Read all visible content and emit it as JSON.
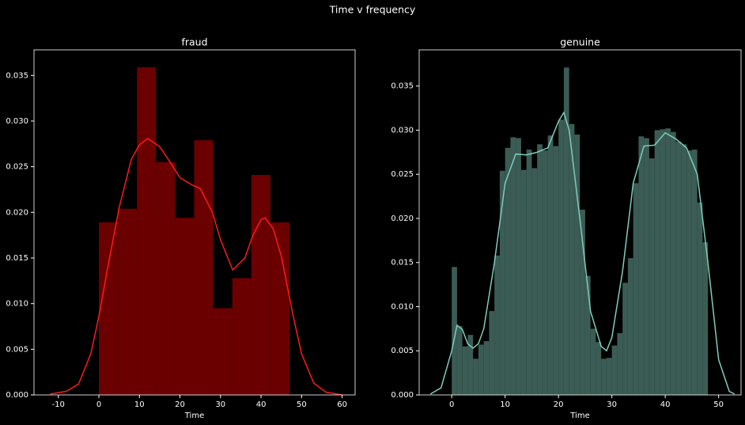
{
  "title": "Time v frequency",
  "chart_data": [
    {
      "type": "histogram",
      "title": "fraud",
      "x_label": "Time",
      "bins": [
        0,
        4.7,
        9.4,
        14.1,
        18.8,
        23.5,
        28.2,
        32.9,
        37.6,
        42.3,
        47
      ],
      "values": [
        0.0189,
        0.0204,
        0.0359,
        0.0255,
        0.0194,
        0.0279,
        0.0095,
        0.0128,
        0.0241,
        0.0189
      ],
      "color": "#6b0000",
      "kde_x": [
        -12,
        -8,
        -5,
        -2,
        0,
        2,
        5,
        8,
        10,
        12,
        15,
        18,
        20,
        23,
        25,
        28,
        30,
        33,
        36,
        38,
        40,
        41,
        43,
        45,
        48,
        50,
        53,
        56,
        60
      ],
      "kde_values": [
        0.0001,
        0.0004,
        0.0012,
        0.0045,
        0.0086,
        0.0135,
        0.0205,
        0.0258,
        0.0274,
        0.0281,
        0.0272,
        0.0252,
        0.0238,
        0.023,
        0.0226,
        0.02,
        0.017,
        0.0137,
        0.015,
        0.0175,
        0.0192,
        0.0194,
        0.0182,
        0.0152,
        0.0085,
        0.0045,
        0.0013,
        0.0003,
        0.0
      ],
      "kde_color": "#ff1a1a",
      "xlim": [
        -16,
        63.2
      ],
      "xticks": [
        -10,
        0,
        10,
        20,
        30,
        40,
        50,
        60
      ],
      "ylim": [
        0,
        0.0378
      ],
      "yticks": [
        {
          "value": 0,
          "label": "0.000"
        },
        {
          "value": 0.005,
          "label": "0.005"
        },
        {
          "value": 0.01,
          "label": "0.010"
        },
        {
          "value": 0.015,
          "label": "0.015"
        },
        {
          "value": 0.02,
          "label": "0.020"
        },
        {
          "value": 0.025,
          "label": "0.025"
        },
        {
          "value": 0.03,
          "label": "0.030"
        },
        {
          "value": 0.035,
          "label": "0.035"
        }
      ]
    },
    {
      "type": "histogram",
      "title": "genuine",
      "x_label": "Time",
      "bins": [
        0,
        1,
        2,
        3,
        4,
        5,
        6,
        7,
        8,
        9,
        10,
        11,
        12,
        13,
        14,
        15,
        16,
        17,
        18,
        19,
        20,
        21,
        22,
        23,
        24,
        25,
        26,
        27,
        28,
        29,
        30,
        31,
        32,
        33,
        34,
        35,
        36,
        37,
        38,
        39,
        40,
        41,
        42,
        43,
        44,
        45,
        46,
        47,
        48
      ],
      "values": [
        0.0145,
        0.0078,
        0.0055,
        0.0068,
        0.0041,
        0.0057,
        0.0061,
        0.0095,
        0.0158,
        0.0254,
        0.028,
        0.0292,
        0.0291,
        0.0255,
        0.0278,
        0.0257,
        0.0284,
        0.0277,
        0.0294,
        0.0282,
        0.0312,
        0.0371,
        0.0307,
        0.0295,
        0.021,
        0.0135,
        0.0075,
        0.006,
        0.0041,
        0.0042,
        0.0056,
        0.007,
        0.0127,
        0.0155,
        0.024,
        0.0293,
        0.0291,
        0.0268,
        0.03,
        0.0301,
        0.0302,
        0.0298,
        0.0287,
        0.0284,
        0.0277,
        0.0278,
        0.0218,
        0.0173
      ],
      "color": "#3b5c55",
      "kde_x": [
        -4,
        -2,
        0,
        1,
        2,
        3,
        4,
        5,
        6,
        8,
        10,
        12,
        14,
        16,
        18,
        20,
        21,
        22,
        24,
        26,
        28,
        29,
        30,
        32,
        34,
        36,
        38,
        40,
        42,
        44,
        46,
        48,
        50,
        52,
        53
      ],
      "kde_values": [
        0.0001,
        0.0008,
        0.005,
        0.0079,
        0.0074,
        0.0058,
        0.0053,
        0.0058,
        0.0075,
        0.015,
        0.024,
        0.0273,
        0.0272,
        0.0275,
        0.028,
        0.031,
        0.032,
        0.03,
        0.02,
        0.0095,
        0.0055,
        0.005,
        0.0065,
        0.014,
        0.024,
        0.0282,
        0.0283,
        0.0297,
        0.029,
        0.028,
        0.025,
        0.015,
        0.004,
        0.0004,
        0.0001
      ],
      "kde_color": "#7fcdbb",
      "xlim": [
        -6.1,
        54.2
      ],
      "xticks": [
        0,
        10,
        20,
        30,
        40,
        50
      ],
      "ylim": [
        0,
        0.0391
      ],
      "yticks": [
        {
          "value": 0,
          "label": "0.000"
        },
        {
          "value": 0.005,
          "label": "0.005"
        },
        {
          "value": 0.01,
          "label": "0.010"
        },
        {
          "value": 0.015,
          "label": "0.015"
        },
        {
          "value": 0.02,
          "label": "0.020"
        },
        {
          "value": 0.025,
          "label": "0.025"
        },
        {
          "value": 0.03,
          "label": "0.030"
        },
        {
          "value": 0.035,
          "label": "0.035"
        }
      ]
    }
  ]
}
